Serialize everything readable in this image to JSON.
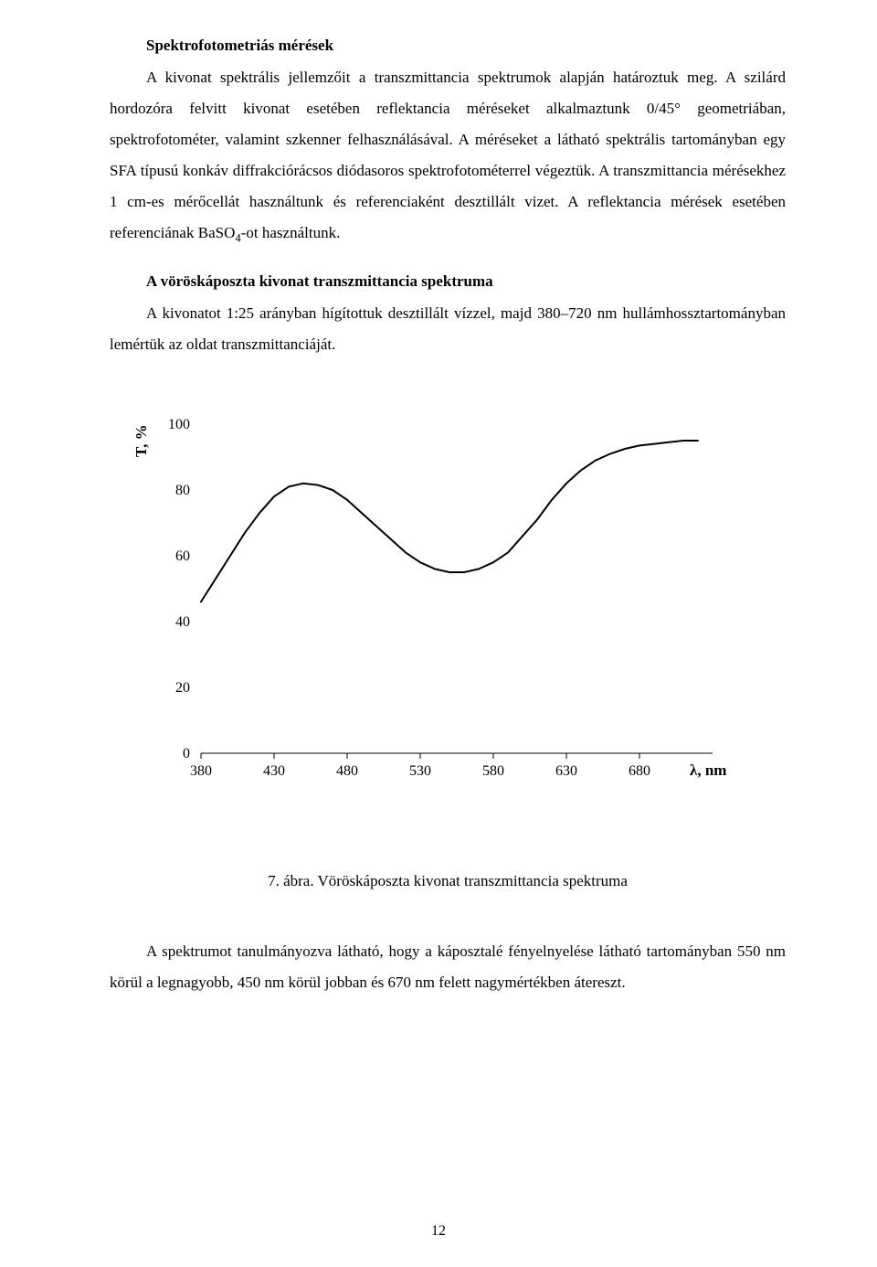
{
  "heading1": "Spektrofotometriás mérések",
  "paragraph1": "A kivonat spektrális jellemzőit a transzmittancia spektrumok alapján határoztuk meg. A szilárd hordozóra felvitt kivonat esetében reflektancia méréseket alkalmaztunk 0/45° geometriában, spektrofotométer, valamint szkenner felhasználásával. A méréseket a látható spektrális tartományban egy SFA típusú konkáv diffrakciórácsos diódasoros spektrofotométerrel végeztük. A transzmittancia mérésekhez 1 cm-es mérőcellát használtunk és referenciaként desztillált vizet. A reflektancia mérések esetében referenciának BaSO",
  "paragraph1_sub": "4",
  "paragraph1_tail": "-ot használtunk.",
  "heading2": "A vöröskáposzta kivonat transzmittancia spektruma",
  "paragraph2": "A kivonatot 1:25 arányban hígítottuk desztillált vízzel, majd 380–720 nm hullámhossztartományban lemértük az oldat transzmittanciáját.",
  "chart": {
    "type": "line",
    "ylabel": "T, %",
    "xlabel": "λ, nm",
    "xlim": [
      380,
      730
    ],
    "ylim": [
      0,
      100
    ],
    "xtick_step": 50,
    "ytick_step": 20,
    "xtick_labels": [
      "380",
      "430",
      "480",
      "530",
      "580",
      "630",
      "680"
    ],
    "ytick_labels": [
      "0",
      "20",
      "40",
      "60",
      "80",
      "100"
    ],
    "series_color": "#000000",
    "line_width": 2,
    "background_color": "#ffffff",
    "points": [
      [
        380,
        46
      ],
      [
        390,
        53
      ],
      [
        400,
        60
      ],
      [
        410,
        67
      ],
      [
        420,
        73
      ],
      [
        430,
        78
      ],
      [
        440,
        81
      ],
      [
        450,
        82
      ],
      [
        460,
        81.5
      ],
      [
        470,
        80
      ],
      [
        480,
        77
      ],
      [
        490,
        73
      ],
      [
        500,
        69
      ],
      [
        510,
        65
      ],
      [
        520,
        61
      ],
      [
        530,
        58
      ],
      [
        540,
        56
      ],
      [
        550,
        55
      ],
      [
        560,
        55
      ],
      [
        570,
        56
      ],
      [
        580,
        58
      ],
      [
        590,
        61
      ],
      [
        600,
        66
      ],
      [
        610,
        71
      ],
      [
        620,
        77
      ],
      [
        630,
        82
      ],
      [
        640,
        86
      ],
      [
        650,
        89
      ],
      [
        660,
        91
      ],
      [
        670,
        92.5
      ],
      [
        680,
        93.5
      ],
      [
        690,
        94
      ],
      [
        700,
        94.5
      ],
      [
        710,
        95
      ],
      [
        720,
        95
      ]
    ],
    "tick_length": 6
  },
  "figure_caption": "7. ábra. Vöröskáposzta kivonat transzmittancia spektruma",
  "paragraph3": "A spektrumot tanulmányozva látható, hogy a káposztalé fényelnyelése látható tartományban 550 nm körül a legnagyobb, 450 nm körül jobban és 670 nm felett nagymértékben átereszt.",
  "page_number": "12"
}
